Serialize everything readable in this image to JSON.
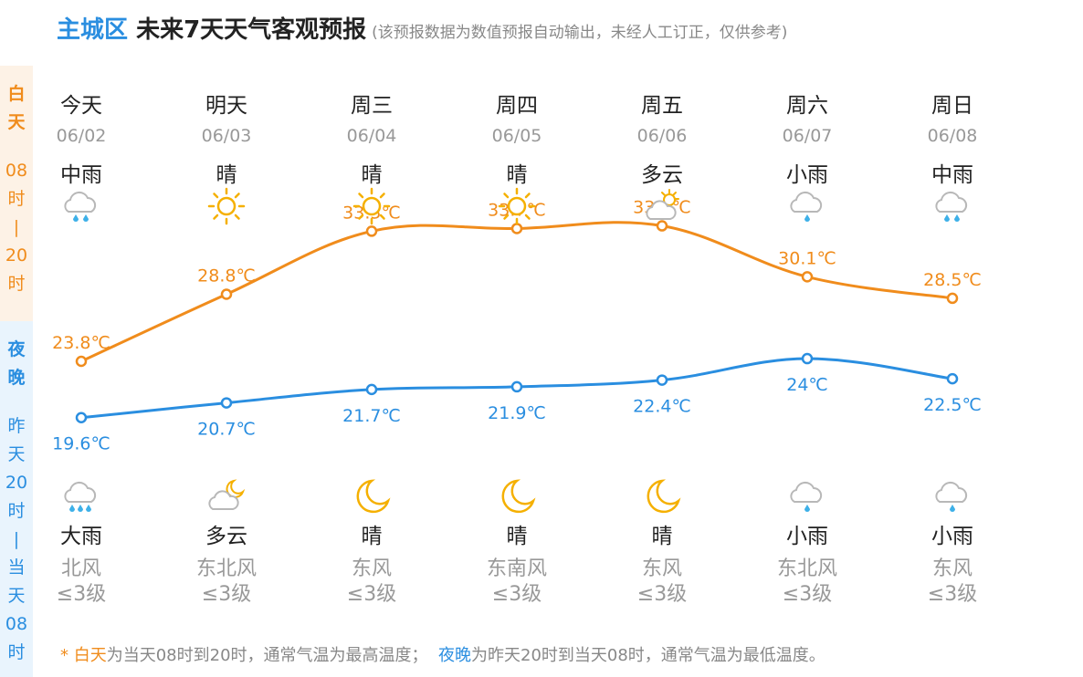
{
  "header": {
    "city": "主城区",
    "title": " 未来7天天气客观预报",
    "note": "(该预报数据为数值预报自动输出，未经人工订正，仅供参考)"
  },
  "sidebar": {
    "day": {
      "label": [
        "白",
        "天"
      ],
      "time": [
        "08",
        "时",
        "|",
        "20",
        "时"
      ]
    },
    "night": {
      "label": [
        "夜",
        "晚"
      ],
      "time": [
        "昨",
        "天",
        "20",
        "时",
        "|",
        "当",
        "天",
        "08",
        "时"
      ]
    }
  },
  "days": [
    {
      "name": "今天",
      "date": "06/02",
      "day_weather": "中雨",
      "day_icon": "rain-moderate-icon",
      "night_icon": "rain-heavy-icon",
      "night_weather": "大雨",
      "wind_dir": "北风",
      "wind_level": "≤3级"
    },
    {
      "name": "明天",
      "date": "06/03",
      "day_weather": "晴",
      "day_icon": "sun-icon",
      "night_icon": "cloud-moon-icon",
      "night_weather": "多云",
      "wind_dir": "东北风",
      "wind_level": "≤3级"
    },
    {
      "name": "周三",
      "date": "06/04",
      "day_weather": "晴",
      "day_icon": "sun-icon",
      "night_icon": "moon-icon",
      "night_weather": "晴",
      "wind_dir": "东风",
      "wind_level": "≤3级"
    },
    {
      "name": "周四",
      "date": "06/05",
      "day_weather": "晴",
      "day_icon": "sun-icon",
      "night_icon": "moon-icon",
      "night_weather": "晴",
      "wind_dir": "东南风",
      "wind_level": "≤3级"
    },
    {
      "name": "周五",
      "date": "06/06",
      "day_weather": "多云",
      "day_icon": "cloud-sun-icon",
      "night_icon": "moon-icon",
      "night_weather": "晴",
      "wind_dir": "东风",
      "wind_level": "≤3级"
    },
    {
      "name": "周六",
      "date": "06/07",
      "day_weather": "小雨",
      "day_icon": "rain-light-icon",
      "night_icon": "rain-light-icon",
      "night_weather": "小雨",
      "wind_dir": "东北风",
      "wind_level": "≤3级"
    },
    {
      "name": "周日",
      "date": "06/08",
      "day_weather": "中雨",
      "day_icon": "rain-moderate-icon",
      "night_icon": "rain-light-icon",
      "night_weather": "小雨",
      "wind_dir": "东风",
      "wind_level": "≤3级"
    }
  ],
  "chart_data": {
    "type": "line",
    "categories": [
      "06/02",
      "06/03",
      "06/04",
      "06/05",
      "06/06",
      "06/07",
      "06/08"
    ],
    "series": [
      {
        "values": [
          23.8,
          28.8,
          33.5,
          33.7,
          33.9,
          30.1,
          28.5
        ],
        "labels": [
          "23.8℃",
          "28.8℃",
          "33.5℃",
          "33.7℃",
          "33.9℃",
          "30.1℃",
          "28.5℃"
        ],
        "color": "#f08c1c"
      },
      {
        "values": [
          19.6,
          20.7,
          21.7,
          21.9,
          22.4,
          24,
          22.5
        ],
        "labels": [
          "19.6℃",
          "20.7℃",
          "21.7℃",
          "21.9℃",
          "22.4℃",
          "24℃",
          "22.5℃"
        ],
        "color": "#2a8ee0"
      }
    ]
  },
  "footer": {
    "star": "* ",
    "day_word": "白天",
    "day_text": "为当天08时到20时，通常气温为最高温度；",
    "night_word": "夜晚",
    "night_text": "为昨天20时到当天08时，通常气温为最低温度。"
  },
  "colors": {
    "day": "#f08c1c",
    "night": "#2a8ee0",
    "sun": "#f5b000",
    "cloud": "#b8b8b8",
    "rain": "#3db0e8"
  }
}
